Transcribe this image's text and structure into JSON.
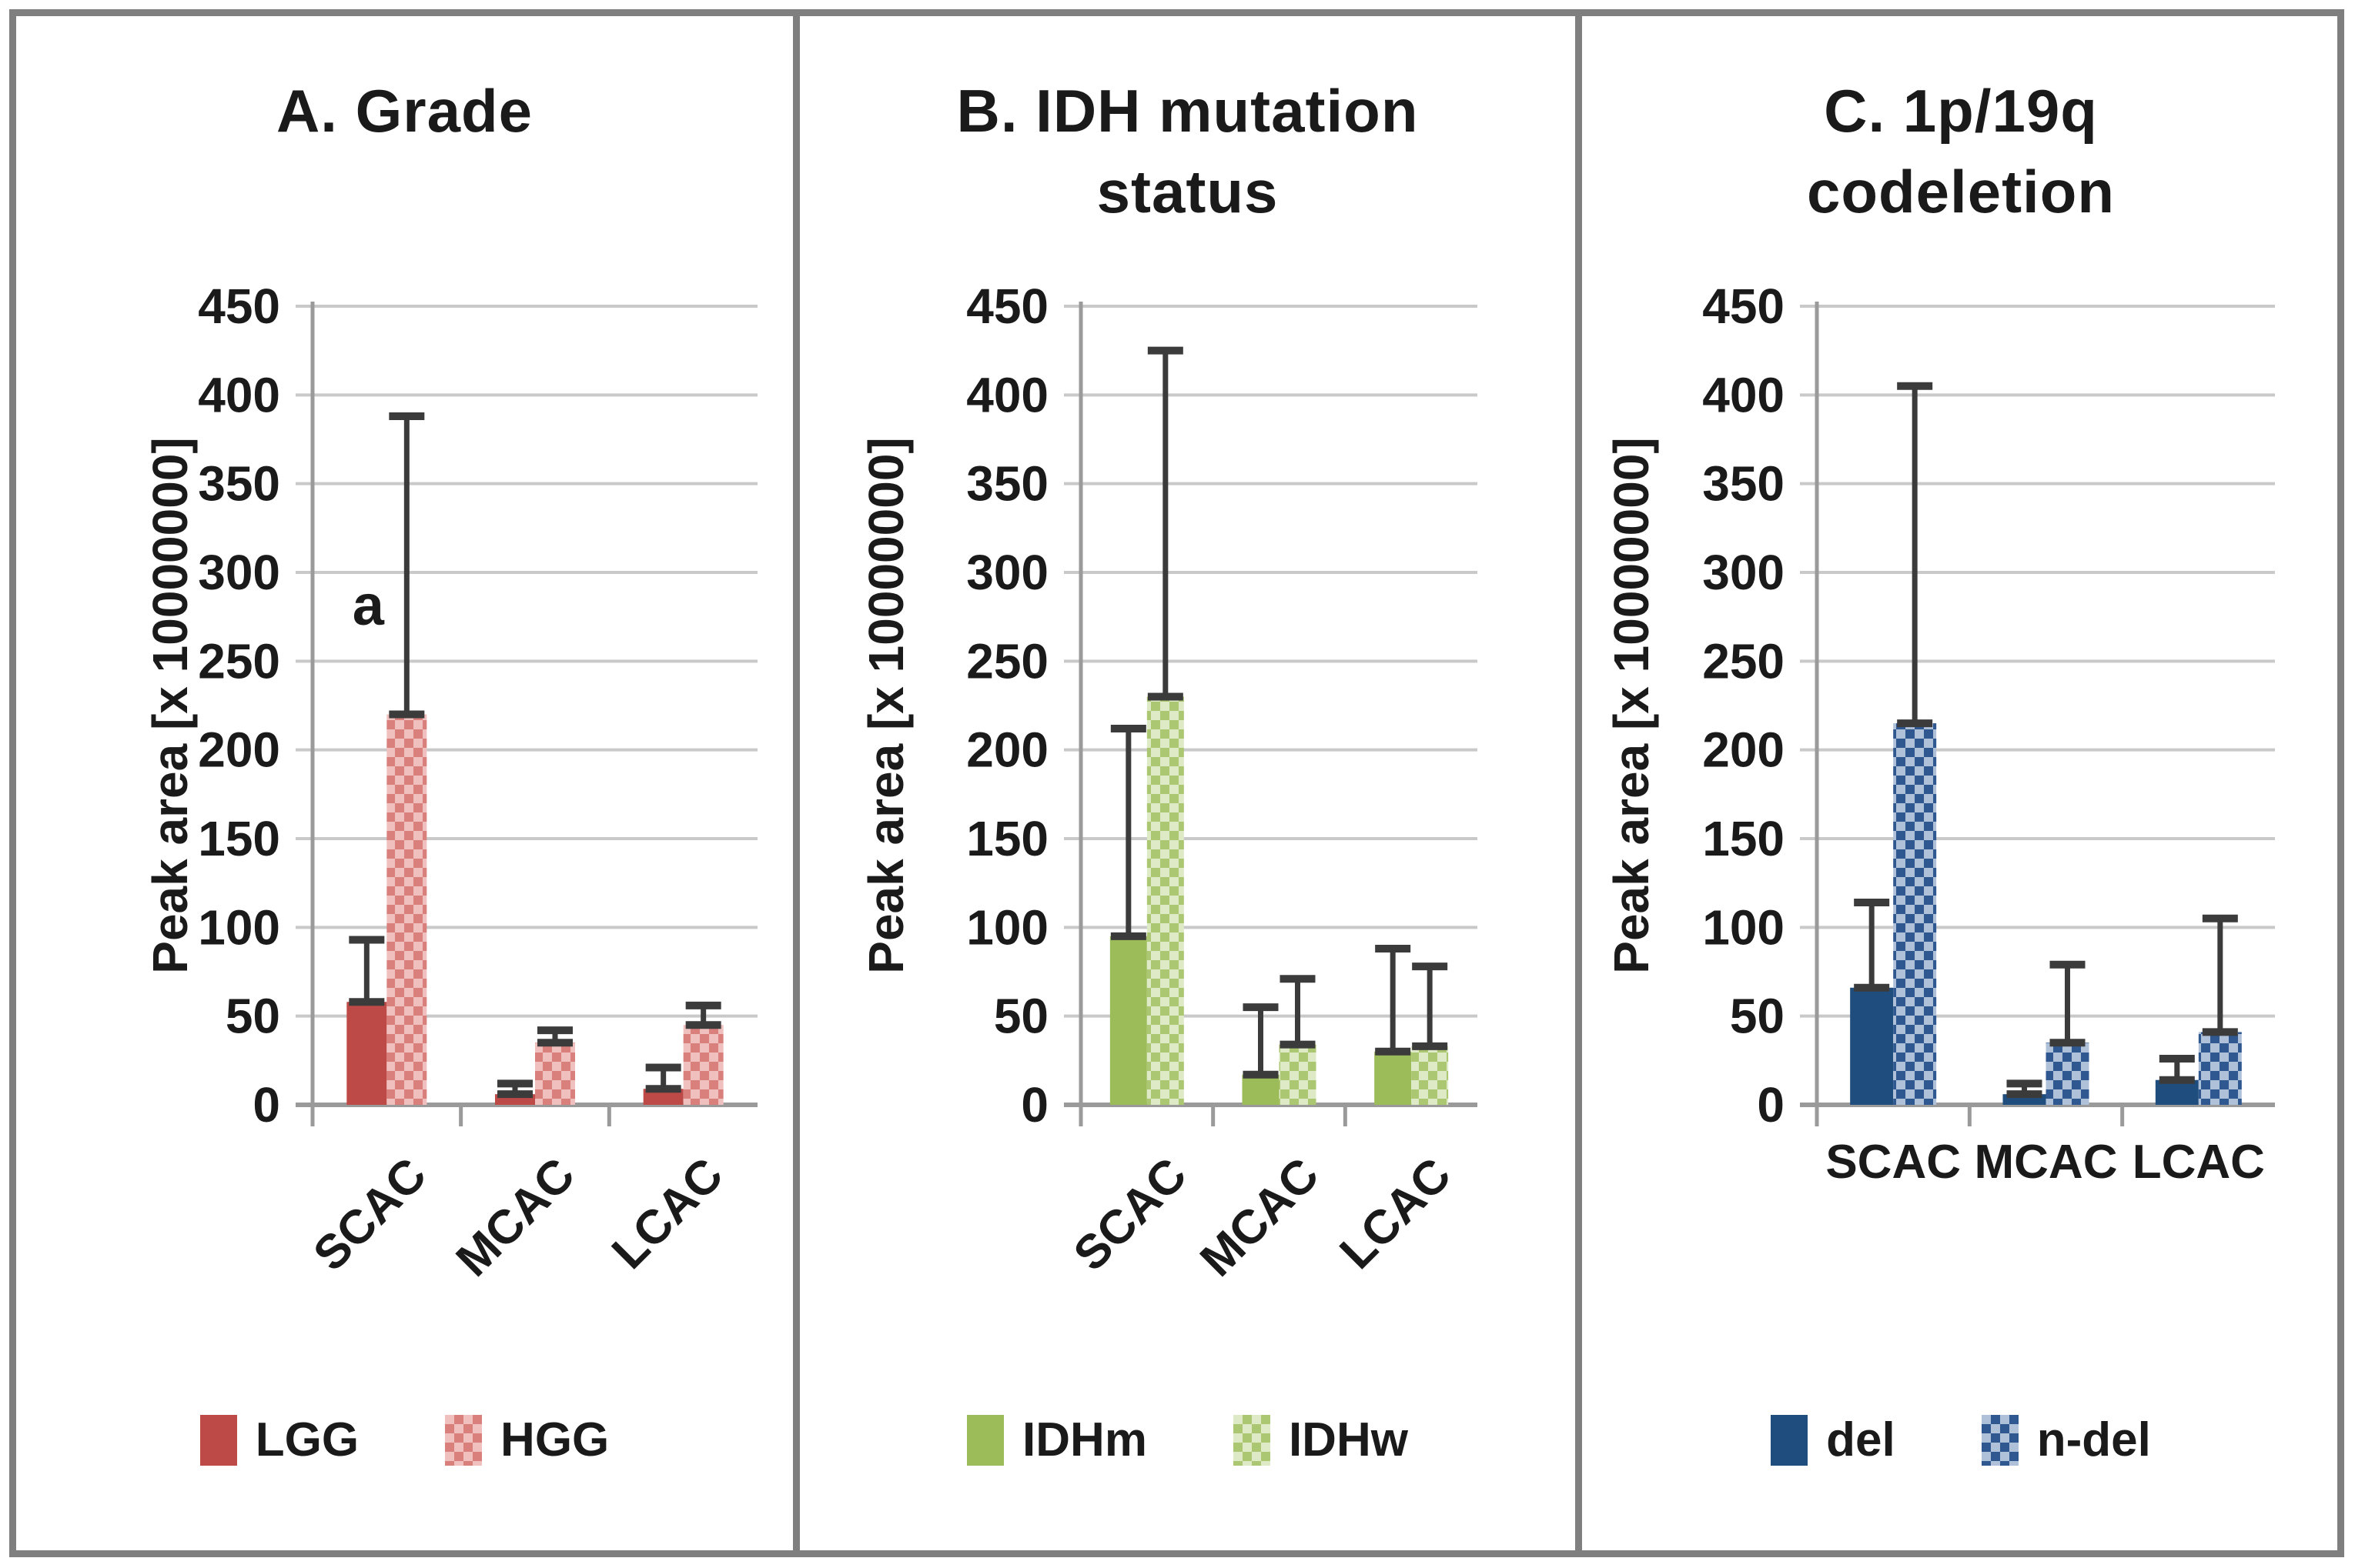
{
  "figure": {
    "background": "#FFFFFF",
    "frame_color": "#7F7F7F",
    "grid_color": "#C9C9C9",
    "axis_color": "#9A9A9A",
    "error_bar_color": "#3B3B3B",
    "text_color": "#1A1A1A",
    "y_axis_label": "Peak area [x 10000000]"
  },
  "chart_data": [
    {
      "type": "bar",
      "title_line1": "A. Grade",
      "title_line2": "",
      "ylabel": "Peak area [x 10000000]",
      "ylim": [
        0,
        450
      ],
      "y_ticks": [
        0,
        50,
        100,
        150,
        200,
        250,
        300,
        350,
        400,
        450
      ],
      "categories": [
        "SCAC",
        "MCAC",
        "LCAC"
      ],
      "x_labels_rotated": true,
      "grid": true,
      "legend_position": "bottom",
      "annotation": {
        "text": "a",
        "group_index": 0,
        "value": 281
      },
      "series": [
        {
          "name": "LGG",
          "fill": "solid",
          "color": "#BE4A48",
          "values": [
            58,
            6,
            9
          ],
          "error_top": [
            93,
            12,
            21
          ]
        },
        {
          "name": "HGG",
          "fill": "pattern",
          "pattern_dark": "#D97F7C",
          "pattern_light": "#F0C0BE",
          "values": [
            220,
            35,
            45
          ],
          "error_top": [
            388,
            42,
            56
          ]
        }
      ]
    },
    {
      "type": "bar",
      "title_line1": "B. IDH mutation",
      "title_line2": "status",
      "ylabel": "Peak area [x 10000000]",
      "ylim": [
        0,
        450
      ],
      "y_ticks": [
        0,
        50,
        100,
        150,
        200,
        250,
        300,
        350,
        400,
        450
      ],
      "categories": [
        "SCAC",
        "MCAC",
        "LCAC"
      ],
      "x_labels_rotated": true,
      "grid": true,
      "legend_position": "bottom",
      "series": [
        {
          "name": "IDHm",
          "fill": "solid",
          "color": "#9CBB59",
          "values": [
            95,
            17,
            30
          ],
          "error_top": [
            212,
            55,
            88
          ]
        },
        {
          "name": "IDHw",
          "fill": "pattern",
          "pattern_dark": "#ACC772",
          "pattern_light": "#DEE9C6",
          "values": [
            230,
            34,
            33
          ],
          "error_top": [
            425,
            71,
            78
          ]
        }
      ]
    },
    {
      "type": "bar",
      "title_line1": "C. 1p/19q",
      "title_line2": "codeletion",
      "ylabel": "Peak area [x 10000000]",
      "ylim": [
        0,
        450
      ],
      "y_ticks": [
        0,
        50,
        100,
        150,
        200,
        250,
        300,
        350,
        400,
        450
      ],
      "categories": [
        "SCAC",
        "MCAC",
        "LCAC"
      ],
      "x_labels_rotated": false,
      "grid": true,
      "legend_position": "bottom",
      "series": [
        {
          "name": "del",
          "fill": "solid",
          "color": "#1F4E7E",
          "values": [
            66,
            6,
            14
          ],
          "error_top": [
            114,
            12,
            26
          ]
        },
        {
          "name": "n-del",
          "fill": "pattern",
          "pattern_dark": "#2F5790",
          "pattern_light": "#AFC1D9",
          "values": [
            215,
            35,
            41
          ],
          "error_top": [
            405,
            79,
            105
          ]
        }
      ]
    }
  ]
}
